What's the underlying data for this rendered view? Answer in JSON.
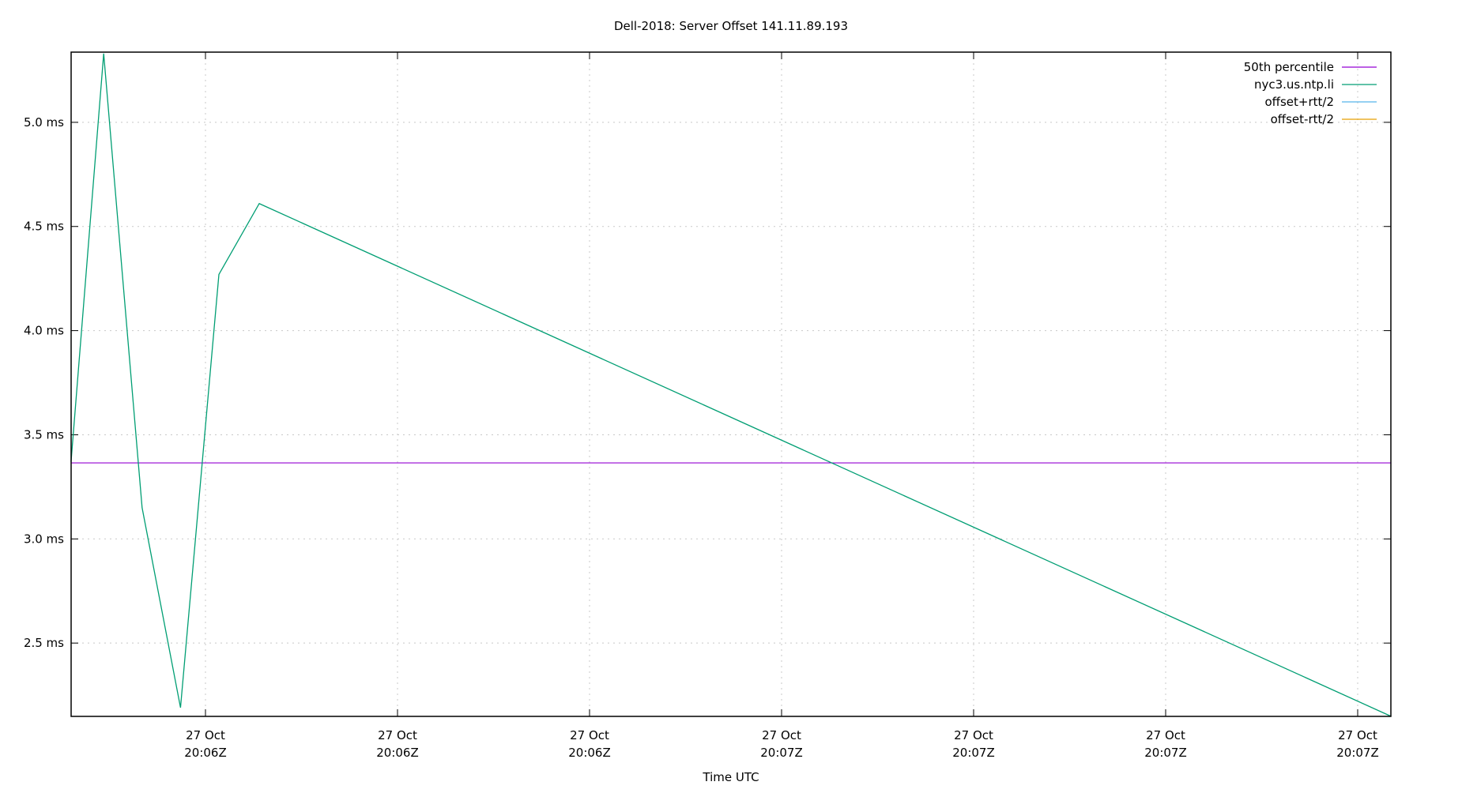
{
  "chart_data": {
    "type": "line",
    "title": "Dell-2018: Server Offset 141.11.89.193",
    "xlabel": "Time UTC",
    "ylabel": "",
    "x_ticks": [
      {
        "pos": 0,
        "line1": "27 Oct",
        "line2": "20:06Z"
      },
      {
        "pos": 1,
        "line1": "27 Oct",
        "line2": "20:06Z"
      },
      {
        "pos": 2,
        "line1": "27 Oct",
        "line2": "20:06Z"
      },
      {
        "pos": 3,
        "line1": "27 Oct",
        "line2": "20:07Z"
      },
      {
        "pos": 4,
        "line1": "27 Oct",
        "line2": "20:07Z"
      },
      {
        "pos": 5,
        "line1": "27 Oct",
        "line2": "20:07Z"
      },
      {
        "pos": 6,
        "line1": "27 Oct",
        "line2": "20:07Z"
      }
    ],
    "xlim": [
      -0.7,
      6.17
    ],
    "y_ticks": [
      {
        "value": 2.5,
        "label": "2.5 ms"
      },
      {
        "value": 3.0,
        "label": "3.0 ms"
      },
      {
        "value": 3.5,
        "label": "3.5 ms"
      },
      {
        "value": 4.0,
        "label": "4.0 ms"
      },
      {
        "value": 4.5,
        "label": "4.5 ms"
      },
      {
        "value": 5.0,
        "label": "5.0 ms"
      }
    ],
    "ylim": [
      2.148,
      5.337
    ],
    "grid": true,
    "legend_position": "top-right",
    "series": [
      {
        "name": "50th percentile",
        "color": "#9400d3",
        "type": "hline",
        "value": 3.365
      },
      {
        "name": "nyc3.us.ntp.li",
        "color": "#009e73",
        "x": [
          -0.7,
          -0.53,
          -0.33,
          -0.13,
          0.07,
          0.28,
          6.17
        ],
        "y": [
          3.37,
          5.33,
          3.15,
          2.19,
          4.27,
          4.61,
          2.15
        ]
      },
      {
        "name": "offset+rtt/2",
        "color": "#56b4e9",
        "x": [],
        "y": []
      },
      {
        "name": "offset-rtt/2",
        "color": "#e69f00",
        "x": [],
        "y": []
      }
    ]
  }
}
